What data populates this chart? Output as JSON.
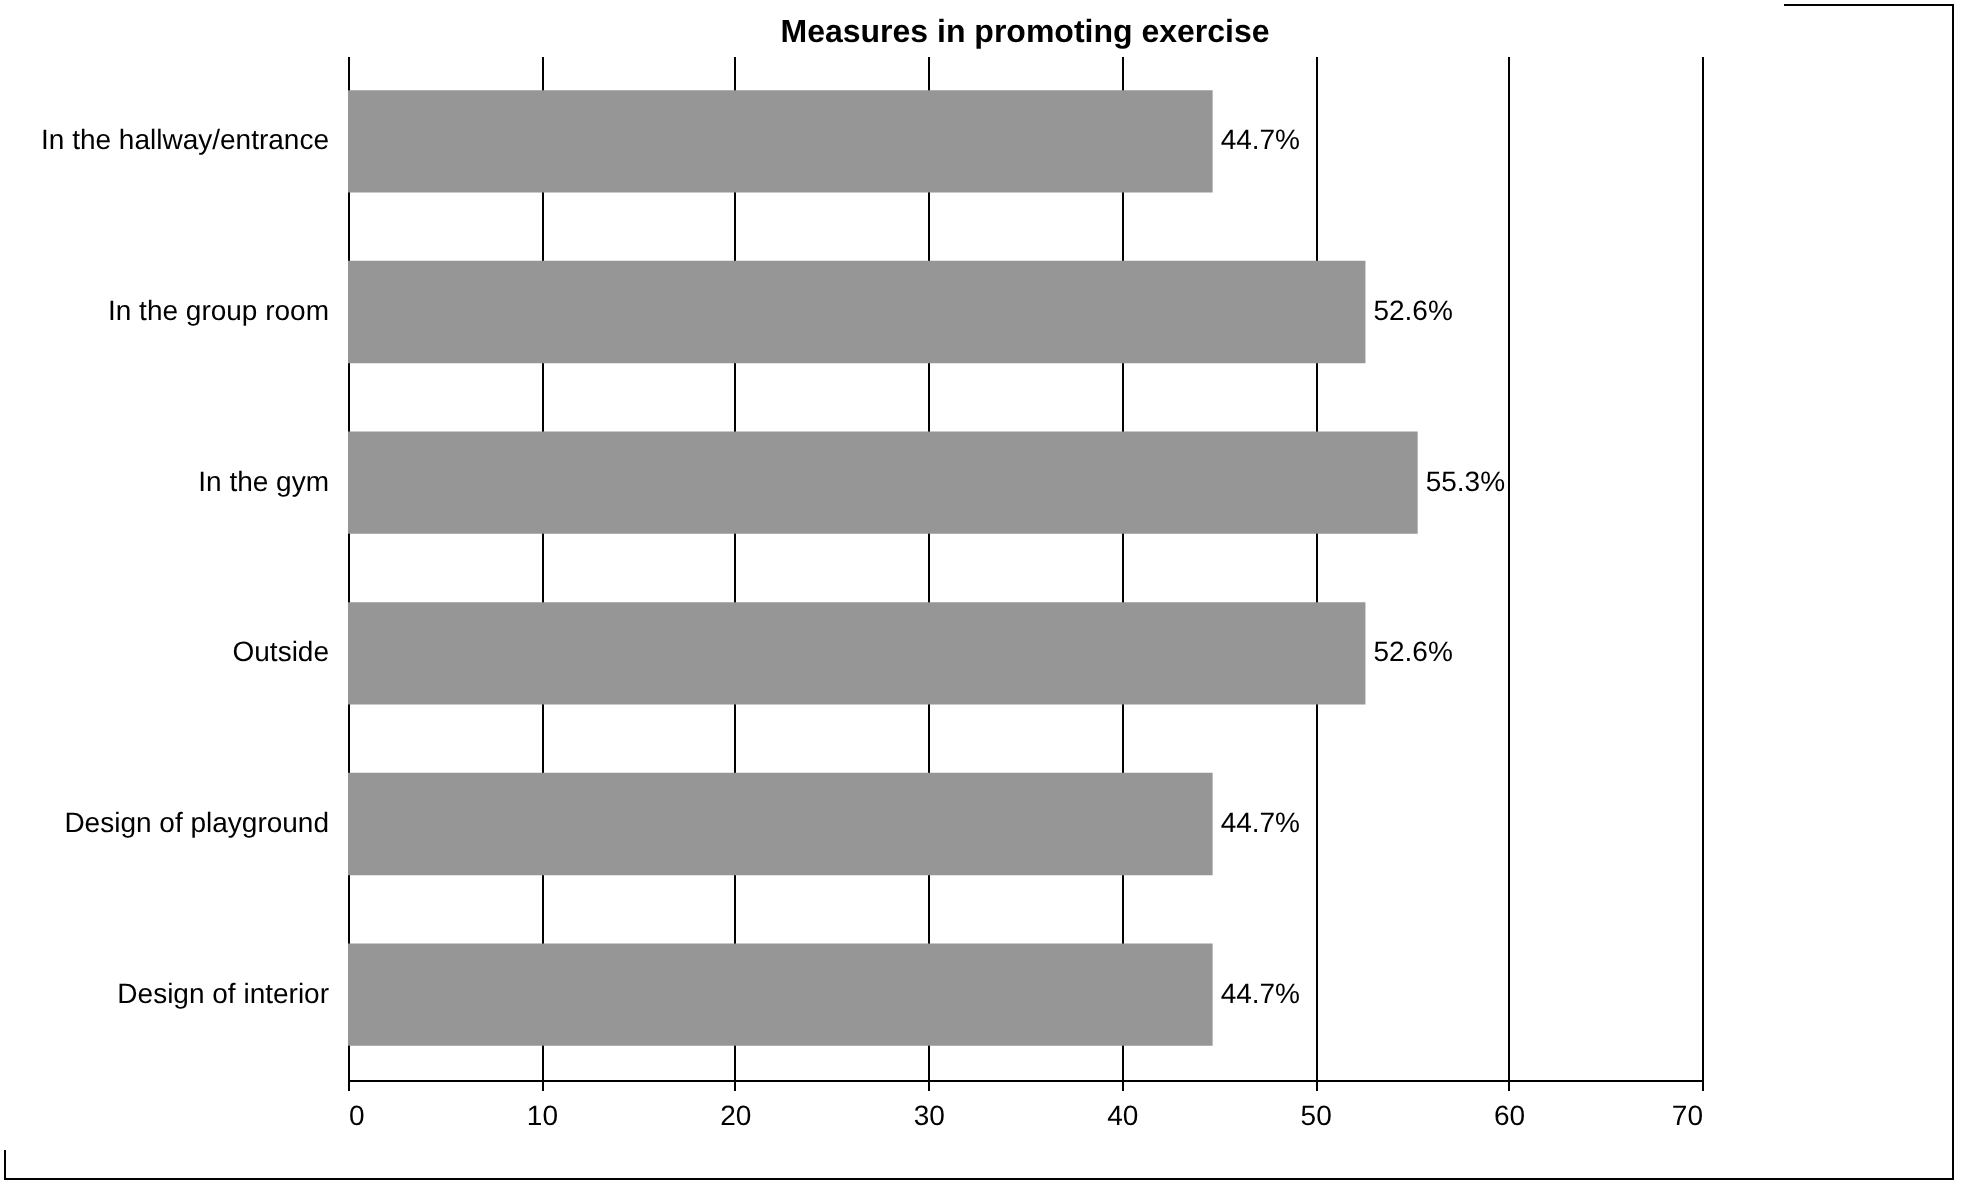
{
  "chart_data": {
    "type": "bar",
    "orientation": "horizontal",
    "title": "Measures in promoting exercise",
    "categories": [
      "In the hallway/entrance",
      "In the group room",
      "In the gym",
      "Outside",
      "Design of playground",
      "Design of interior"
    ],
    "values": [
      44.7,
      52.6,
      55.3,
      52.6,
      44.7,
      44.7
    ],
    "value_labels": [
      "44.7%",
      "52.6%",
      "55.3%",
      "52.6%",
      "44.7%",
      "44.7%"
    ],
    "color": "#969696",
    "xlim": [
      0,
      70
    ],
    "xticks": [
      0,
      10,
      20,
      30,
      40,
      50,
      60,
      70
    ],
    "grid": "x"
  }
}
